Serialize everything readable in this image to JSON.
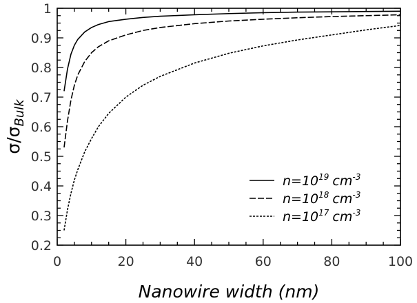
{
  "chart_data": {
    "type": "line",
    "xlabel": "Nanowire width (nm)",
    "ylabel": "σ/σ",
    "ylabel_subscript": "Bulk",
    "xlim": [
      0,
      100
    ],
    "ylim": [
      0.2,
      1.0
    ],
    "xticks": [
      "0",
      "20",
      "40",
      "60",
      "80",
      "100"
    ],
    "yticks": [
      "0.2",
      "0.3",
      "0.4",
      "0.5",
      "0.6",
      "0.7",
      "0.8",
      "0.9",
      "1"
    ],
    "grid": false,
    "legend_position": "center-right",
    "x": [
      2,
      3,
      4,
      5,
      6,
      8,
      10,
      12,
      15,
      20,
      25,
      30,
      40,
      50,
      60,
      70,
      80,
      90,
      100
    ],
    "series": [
      {
        "name": "n=10",
        "name_superscript": "19",
        "unit": "cm",
        "unit_superscript": "-3",
        "style": "solid",
        "values": [
          0.72,
          0.795,
          0.845,
          0.875,
          0.895,
          0.92,
          0.935,
          0.945,
          0.955,
          0.963,
          0.969,
          0.973,
          0.978,
          0.982,
          0.985,
          0.987,
          0.988,
          0.989,
          0.99
        ]
      },
      {
        "name": "n=10",
        "name_superscript": "18",
        "unit": "cm",
        "unit_superscript": "-3",
        "style": "dashed",
        "values": [
          0.53,
          0.62,
          0.69,
          0.74,
          0.775,
          0.82,
          0.85,
          0.87,
          0.89,
          0.91,
          0.925,
          0.935,
          0.948,
          0.957,
          0.963,
          0.968,
          0.972,
          0.975,
          0.978
        ]
      },
      {
        "name": "n=10",
        "name_superscript": "17",
        "unit": "cm",
        "unit_superscript": "-3",
        "style": "dotted",
        "values": [
          0.25,
          0.32,
          0.375,
          0.42,
          0.455,
          0.515,
          0.56,
          0.6,
          0.645,
          0.7,
          0.74,
          0.77,
          0.815,
          0.848,
          0.873,
          0.893,
          0.91,
          0.927,
          0.942
        ]
      }
    ]
  }
}
